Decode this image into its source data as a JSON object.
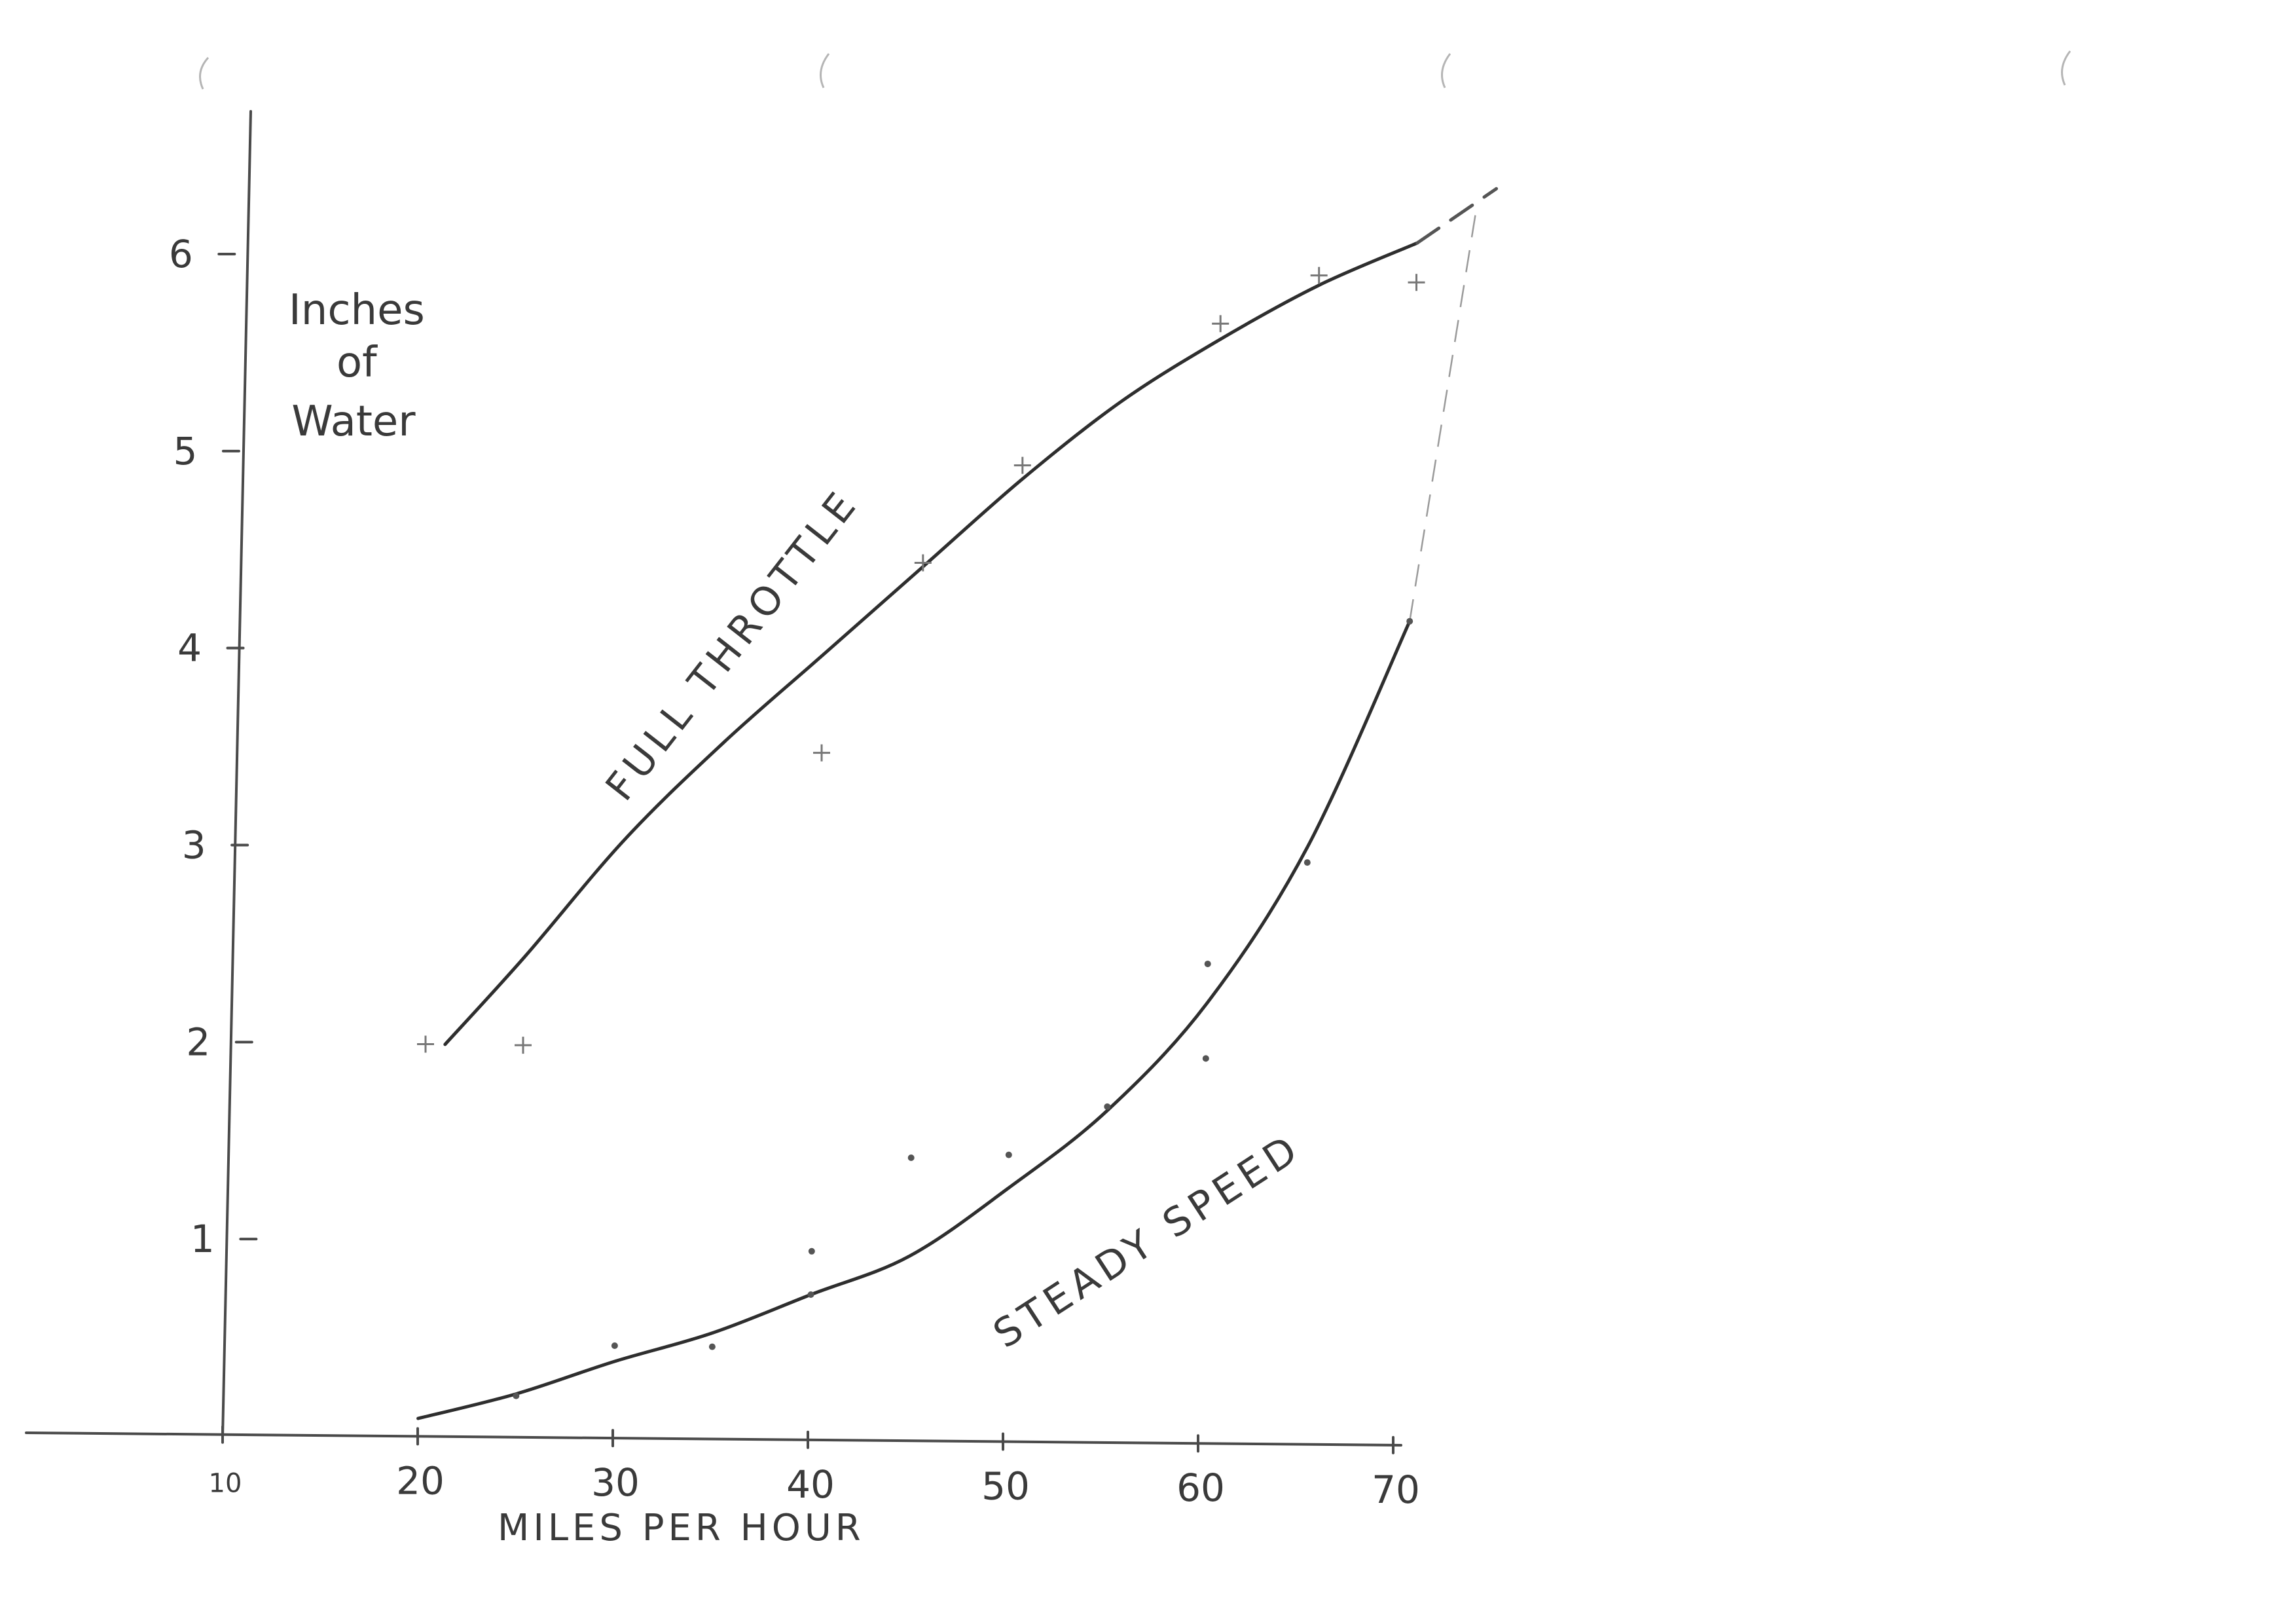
{
  "chart_data": {
    "type": "line",
    "ylabel": "Inches of Water",
    "xlabel": "MILES PER HOUR",
    "xlim": [
      10,
      70
    ],
    "ylim": [
      0,
      6.5
    ],
    "x_ticks": [
      10,
      20,
      30,
      40,
      50,
      60,
      70
    ],
    "x_tick_labels": [
      "10",
      "20",
      "30",
      "40",
      "50",
      "60",
      "70"
    ],
    "y_ticks": [
      1,
      2,
      3,
      4,
      5,
      6
    ],
    "y_tick_labels": [
      "1",
      "2",
      "3",
      "4",
      "5",
      "6"
    ],
    "grid": false,
    "series": [
      {
        "name": "FULL THROTTLE",
        "marker": "cross",
        "curve": {
          "x": [
            21,
            25,
            30,
            35,
            40,
            45,
            50,
            55,
            60,
            65,
            70
          ],
          "y": [
            2.0,
            2.45,
            3.05,
            3.55,
            4.0,
            4.45,
            4.9,
            5.3,
            5.62,
            5.9,
            6.12
          ]
        },
        "extrapolated": {
          "x": [
            70,
            74
          ],
          "y": [
            6.12,
            6.4
          ]
        },
        "points": {
          "x": [
            20,
            25,
            40,
            45,
            50,
            60,
            65,
            70
          ],
          "y": [
            2.0,
            2.0,
            3.5,
            4.47,
            4.97,
            5.7,
            5.95,
            5.92
          ]
        }
      },
      {
        "name": "STEADY SPEED",
        "marker": "dot",
        "curve": {
          "x": [
            20,
            25,
            30,
            35,
            40,
            45,
            50,
            55,
            60,
            65,
            70
          ],
          "y": [
            0.1,
            0.23,
            0.4,
            0.55,
            0.75,
            0.95,
            1.3,
            1.7,
            2.25,
            3.05,
            4.2
          ]
        },
        "extrapolated": {
          "x": [
            70,
            73
          ],
          "y": [
            4.2,
            6.3
          ]
        },
        "points": {
          "x": [
            25,
            30,
            35,
            40,
            40,
            45,
            50,
            55,
            60,
            60,
            65,
            70
          ],
          "y": [
            0.22,
            0.48,
            0.48,
            0.75,
            0.97,
            1.45,
            1.47,
            1.72,
            1.97,
            2.45,
            2.97,
            4.2
          ]
        }
      }
    ]
  }
}
